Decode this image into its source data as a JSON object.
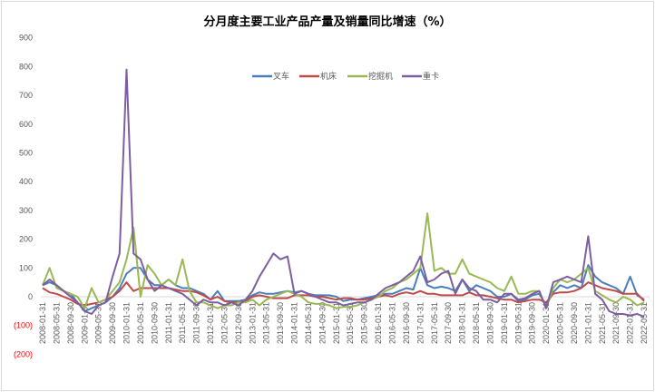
{
  "chart_data": {
    "type": "line",
    "title": "分月度主要工业产品产量及销量同比增速（%）",
    "xlabel": "",
    "ylabel": "",
    "ylim": [
      -200,
      900
    ],
    "grid": false,
    "legend_position": "top-center",
    "y_ticks": [
      900,
      800,
      700,
      600,
      500,
      400,
      300,
      200,
      100,
      0,
      -100,
      -200
    ],
    "y_tick_labels": [
      "900",
      "800",
      "700",
      "600",
      "500",
      "400",
      "300",
      "200",
      "100",
      "0",
      "(100)",
      "(200)"
    ],
    "x_note": "bimonthly samples from 2008-01 to 2022-05",
    "x": [
      "2008-01",
      "2008-03",
      "2008-05",
      "2008-07",
      "2008-09",
      "2008-11",
      "2009-01",
      "2009-03",
      "2009-05",
      "2009-07",
      "2009-09",
      "2009-11",
      "2010-01",
      "2010-03",
      "2010-05",
      "2010-07",
      "2010-09",
      "2010-11",
      "2011-01",
      "2011-03",
      "2011-05",
      "2011-07",
      "2011-09",
      "2011-11",
      "2012-01",
      "2012-03",
      "2012-05",
      "2012-07",
      "2012-09",
      "2012-11",
      "2013-01",
      "2013-03",
      "2013-05",
      "2013-07",
      "2013-09",
      "2013-11",
      "2014-01",
      "2014-03",
      "2014-05",
      "2014-07",
      "2014-09",
      "2014-11",
      "2015-01",
      "2015-03",
      "2015-05",
      "2015-07",
      "2015-09",
      "2015-11",
      "2016-01",
      "2016-03",
      "2016-05",
      "2016-07",
      "2016-09",
      "2016-11",
      "2017-01",
      "2017-03",
      "2017-05",
      "2017-07",
      "2017-09",
      "2017-11",
      "2018-01",
      "2018-03",
      "2018-05",
      "2018-07",
      "2018-09",
      "2018-11",
      "2019-01",
      "2019-03",
      "2019-05",
      "2019-07",
      "2019-09",
      "2019-11",
      "2020-01",
      "2020-03",
      "2020-05",
      "2020-07",
      "2020-09",
      "2020-11",
      "2021-01",
      "2021-03",
      "2021-05",
      "2021-07",
      "2021-09",
      "2021-11",
      "2022-01",
      "2022-03",
      "2022-05"
    ],
    "x_tick_labels": [
      "2008-01-31",
      "2008-05-31",
      "2008-09-30",
      "2009-01-31",
      "2009-05-31",
      "2009-09-30",
      "2010-01-31",
      "2010-05-31",
      "2010-09-30",
      "2011-01-31",
      "2011-05-31",
      "2011-09-30",
      "2012-01-31",
      "2012-05-31",
      "2012-09-30",
      "2013-01-31",
      "2013-05-31",
      "2013-09-30",
      "2014-01-31",
      "2014-05-31",
      "2014-09-30",
      "2015-01-31",
      "2015-05-31",
      "2015-09-30",
      "2016-01-31",
      "2016-05-31",
      "2016-09-30",
      "2017-01-31",
      "2017-05-31",
      "2017-09-30",
      "2018-01-31",
      "2018-05-31",
      "2018-09-30",
      "2019-01-31",
      "2019-05-31",
      "2019-09-30",
      "2020-01-31",
      "2020-05-31",
      "2020-09-30",
      "2021-01-31",
      "2021-05-31",
      "2021-09-30",
      "2022-01-31",
      "2022-05-31"
    ],
    "series": [
      {
        "name": "叉车",
        "color": "#4a7ebb",
        "values": [
          40,
          50,
          40,
          20,
          10,
          -20,
          -50,
          -40,
          -30,
          -20,
          0,
          30,
          80,
          100,
          100,
          60,
          40,
          40,
          60,
          40,
          30,
          30,
          20,
          10,
          -10,
          20,
          -15,
          -15,
          -15,
          -10,
          5,
          15,
          10,
          10,
          15,
          20,
          15,
          20,
          10,
          5,
          5,
          5,
          0,
          -15,
          -10,
          -10,
          -5,
          0,
          5,
          10,
          10,
          20,
          30,
          25,
          100,
          40,
          30,
          35,
          30,
          20,
          60,
          20,
          40,
          30,
          20,
          0,
          0,
          10,
          -15,
          -10,
          5,
          10,
          -30,
          15,
          40,
          30,
          40,
          30,
          110,
          70,
          50,
          40,
          30,
          10,
          70,
          5,
          -10
        ]
      },
      {
        "name": "机床",
        "color": "#be4b48",
        "values": [
          30,
          15,
          10,
          0,
          -10,
          -25,
          -30,
          -25,
          -20,
          -10,
          0,
          20,
          50,
          20,
          30,
          30,
          30,
          30,
          30,
          25,
          20,
          20,
          15,
          5,
          -10,
          0,
          -15,
          -20,
          -20,
          -15,
          0,
          5,
          0,
          -5,
          -5,
          -5,
          5,
          5,
          5,
          0,
          0,
          -5,
          -10,
          -5,
          -5,
          -10,
          -10,
          -5,
          0,
          5,
          0,
          10,
          15,
          10,
          20,
          10,
          10,
          5,
          5,
          5,
          5,
          15,
          5,
          5,
          0,
          -5,
          -10,
          -10,
          -20,
          -15,
          -10,
          -10,
          -20,
          10,
          15,
          15,
          20,
          30,
          50,
          40,
          30,
          25,
          20,
          10,
          10,
          10,
          -15
        ]
      },
      {
        "name": "挖掘机",
        "color": "#98b954",
        "values": [
          40,
          100,
          30,
          20,
          10,
          0,
          -40,
          30,
          -20,
          -10,
          20,
          50,
          130,
          240,
          0,
          110,
          80,
          40,
          60,
          40,
          130,
          20,
          -20,
          -20,
          -30,
          -40,
          -30,
          -30,
          -20,
          -20,
          -10,
          -30,
          -10,
          0,
          10,
          20,
          10,
          0,
          -20,
          -25,
          -25,
          -30,
          -40,
          -35,
          -35,
          -30,
          -20,
          -10,
          0,
          20,
          30,
          50,
          60,
          80,
          100,
          290,
          90,
          100,
          80,
          80,
          130,
          80,
          70,
          60,
          50,
          30,
          20,
          70,
          10,
          10,
          20,
          20,
          -40,
          30,
          60,
          50,
          60,
          80,
          100,
          20,
          5,
          -10,
          -20,
          0,
          -10,
          -30,
          -20
        ]
      },
      {
        "name": "重卡",
        "color": "#7d5fa0",
        "values": [
          40,
          60,
          40,
          20,
          0,
          -20,
          -50,
          -60,
          -30,
          -20,
          70,
          150,
          790,
          150,
          130,
          60,
          20,
          40,
          30,
          20,
          10,
          -10,
          -30,
          -10,
          -20,
          -20,
          -30,
          -20,
          -30,
          -10,
          20,
          70,
          110,
          150,
          130,
          140,
          10,
          20,
          10,
          0,
          -10,
          -20,
          -20,
          -30,
          -25,
          -20,
          -20,
          -10,
          10,
          30,
          40,
          50,
          70,
          90,
          140,
          50,
          60,
          80,
          90,
          10,
          60,
          30,
          20,
          -10,
          -10,
          -20,
          10,
          10,
          -10,
          -5,
          10,
          20,
          -40,
          50,
          60,
          70,
          60,
          50,
          210,
          10,
          -10,
          -50,
          -60,
          -60,
          -65,
          -60,
          -70
        ]
      }
    ]
  }
}
